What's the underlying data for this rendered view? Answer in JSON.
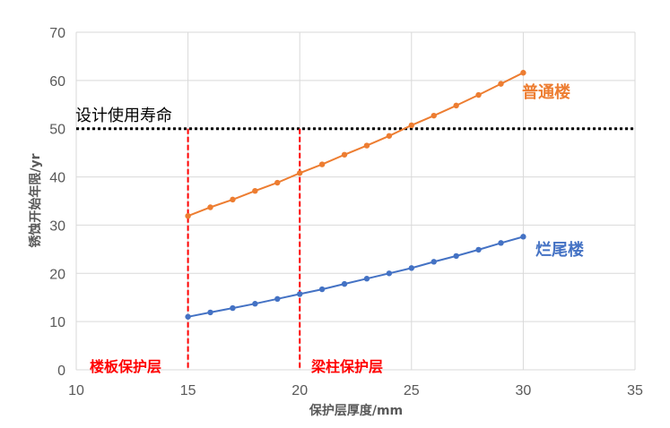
{
  "chart_data": {
    "type": "line",
    "title": "",
    "xlabel": "保护层厚度/mm",
    "ylabel": "锈蚀开始年限/yr",
    "xlim": [
      10,
      35
    ],
    "ylim": [
      0,
      70
    ],
    "xticks": [
      "10",
      "15",
      "20",
      "25",
      "30",
      "35"
    ],
    "yticks": [
      "0",
      "10",
      "20",
      "30",
      "40",
      "50",
      "60",
      "70"
    ],
    "grid": true,
    "legend": "none (inline series labels)",
    "x": [
      15,
      16,
      17,
      18,
      19,
      20,
      21,
      22,
      23,
      24,
      25,
      26,
      27,
      28,
      29,
      30
    ],
    "series": [
      {
        "name": "普通楼",
        "color": "#ED7D31",
        "values": [
          31.9,
          33.7,
          35.3,
          37.1,
          38.8,
          40.8,
          42.6,
          44.6,
          46.5,
          48.5,
          50.7,
          52.7,
          54.8,
          57.0,
          59.3,
          61.6
        ]
      },
      {
        "name": "烂尾楼",
        "color": "#4472C4",
        "values": [
          11.0,
          11.9,
          12.8,
          13.7,
          14.7,
          15.7,
          16.7,
          17.8,
          18.9,
          20.0,
          21.1,
          22.4,
          23.6,
          24.9,
          26.3,
          27.6
        ]
      }
    ],
    "annotations": [
      {
        "text": "设计使用寿命",
        "type": "hline",
        "y": 50,
        "style": "dotted",
        "color": "#000000"
      },
      {
        "text": "楼板保护层",
        "type": "vline",
        "x": 15,
        "style": "dashed",
        "color": "#FF0000"
      },
      {
        "text": "梁柱保护层",
        "type": "vline",
        "x": 20,
        "style": "dashed",
        "color": "#FF0000"
      }
    ]
  },
  "labels": {
    "xlabel": "保护层厚度/mm",
    "ylabel": "锈蚀开始年限/yr",
    "design_life": "设计使用寿命",
    "slab_cover": "楼板保护层",
    "beam_cover": "梁柱保护层",
    "series_normal": "普通楼",
    "series_unfinished": "烂尾楼"
  }
}
